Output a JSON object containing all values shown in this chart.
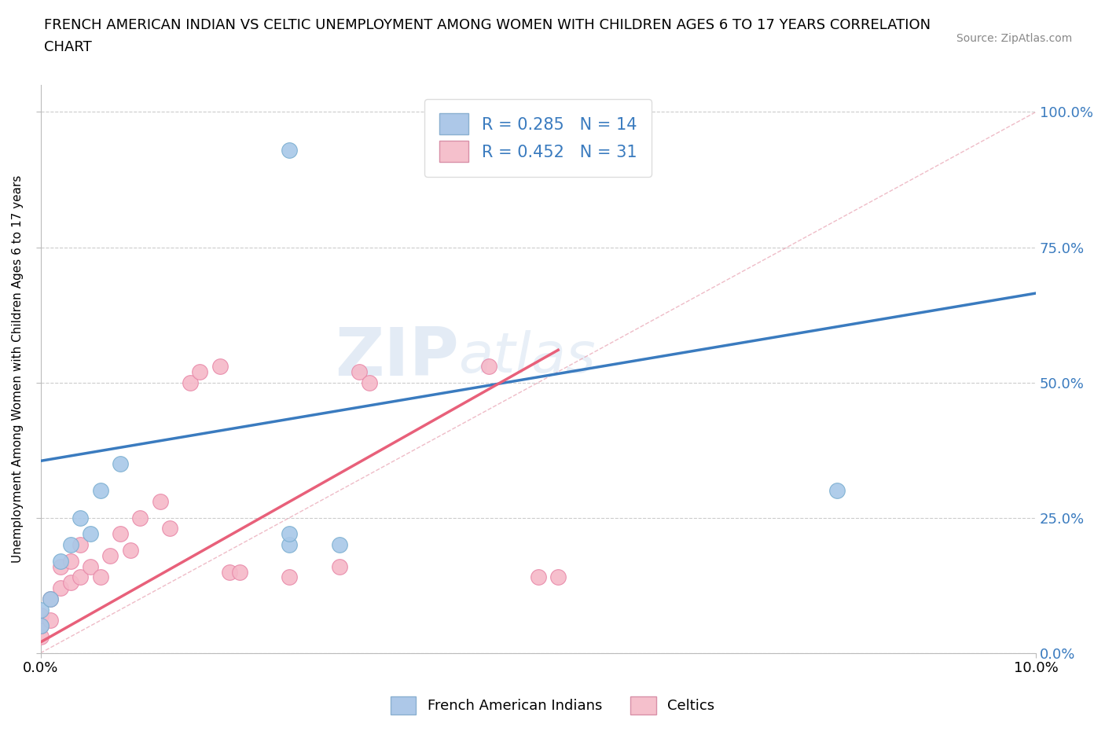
{
  "title_line1": "FRENCH AMERICAN INDIAN VS CELTIC UNEMPLOYMENT AMONG WOMEN WITH CHILDREN AGES 6 TO 17 YEARS CORRELATION",
  "title_line2": "CHART",
  "source": "Source: ZipAtlas.com",
  "ylabel": "Unemployment Among Women with Children Ages 6 to 17 years",
  "xmin": 0.0,
  "xmax": 0.1,
  "ymin": 0.0,
  "ymax": 1.05,
  "ytick_labels": [
    "0.0%",
    "25.0%",
    "50.0%",
    "75.0%",
    "100.0%"
  ],
  "ytick_values": [
    0.0,
    0.25,
    0.5,
    0.75,
    1.0
  ],
  "color_blue": "#a8c8e8",
  "color_blue_edge": "#7aaed0",
  "color_blue_line": "#3a7bbf",
  "color_pink": "#f5b8c8",
  "color_pink_edge": "#e888a8",
  "color_pink_line": "#e8607a",
  "color_diagonal": "#e8a0b0",
  "watermark_zip": "ZIP",
  "watermark_atlas": "atlas",
  "blue_points_x": [
    0.0,
    0.0,
    0.001,
    0.002,
    0.003,
    0.004,
    0.005,
    0.006,
    0.008,
    0.025,
    0.025,
    0.03,
    0.08,
    0.025
  ],
  "blue_points_y": [
    0.05,
    0.08,
    0.1,
    0.17,
    0.2,
    0.25,
    0.22,
    0.3,
    0.35,
    0.2,
    0.22,
    0.2,
    0.3,
    0.93
  ],
  "pink_points_x": [
    0.0,
    0.0,
    0.0,
    0.001,
    0.001,
    0.002,
    0.002,
    0.003,
    0.003,
    0.004,
    0.004,
    0.005,
    0.006,
    0.007,
    0.008,
    0.009,
    0.01,
    0.012,
    0.013,
    0.015,
    0.016,
    0.018,
    0.019,
    0.02,
    0.025,
    0.03,
    0.032,
    0.033,
    0.045,
    0.05,
    0.052
  ],
  "pink_points_y": [
    0.03,
    0.05,
    0.07,
    0.06,
    0.1,
    0.12,
    0.16,
    0.13,
    0.17,
    0.14,
    0.2,
    0.16,
    0.14,
    0.18,
    0.22,
    0.19,
    0.25,
    0.28,
    0.23,
    0.5,
    0.52,
    0.53,
    0.15,
    0.15,
    0.14,
    0.16,
    0.52,
    0.5,
    0.53,
    0.14,
    0.14
  ],
  "blue_line_x": [
    0.0,
    0.1
  ],
  "blue_line_y": [
    0.355,
    0.665
  ],
  "pink_line_x": [
    0.0,
    0.052
  ],
  "pink_line_y": [
    0.02,
    0.56
  ],
  "diag_line_x": [
    0.0,
    0.1
  ],
  "diag_line_y": [
    0.0,
    1.0
  ],
  "pink_legend_color": "#f5c0cc",
  "blue_legend_color": "#adc8e8"
}
